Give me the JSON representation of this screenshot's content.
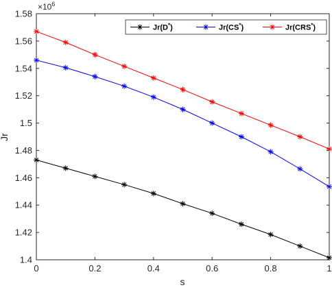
{
  "chart_data": {
    "type": "line",
    "title": "",
    "xlabel": "s",
    "ylabel": "Jr",
    "y_multiplier": "×10",
    "y_multiplier_exp": "6",
    "xlim": [
      0,
      1
    ],
    "ylim": [
      1.4,
      1.58
    ],
    "xticks": [
      0,
      0.2,
      0.4,
      0.6,
      0.8,
      1
    ],
    "xtick_labels": [
      "0",
      "0.2",
      "0.4",
      "0.6",
      "0.8",
      "1"
    ],
    "yticks": [
      1.4,
      1.42,
      1.44,
      1.46,
      1.48,
      1.5,
      1.52,
      1.54,
      1.56,
      1.58
    ],
    "ytick_labels": [
      "1.4",
      "1.42",
      "1.44",
      "1.46",
      "1.48",
      "1.5",
      "1.52",
      "1.54",
      "1.56",
      "1.58"
    ],
    "grid": false,
    "legend_position": "top-right",
    "x": [
      0,
      0.1,
      0.2,
      0.3,
      0.4,
      0.5,
      0.6,
      0.7,
      0.8,
      0.9,
      1
    ],
    "series": [
      {
        "name": "Jr(D",
        "sup": "*",
        "close": ")",
        "color": "#000000",
        "marker": "asterisk",
        "values": [
          1.473,
          1.467,
          1.461,
          1.455,
          1.4485,
          1.441,
          1.434,
          1.426,
          1.4185,
          1.41,
          1.4015
        ]
      },
      {
        "name": "Jr(CS",
        "sup": "*",
        "close": ")",
        "color": "#0000ff",
        "marker": "asterisk",
        "values": [
          1.546,
          1.5405,
          1.534,
          1.527,
          1.519,
          1.51,
          1.5,
          1.49,
          1.479,
          1.4665,
          1.4535
        ]
      },
      {
        "name": "Jr(CRS",
        "sup": "*",
        "close": ")",
        "color": "#ff0000",
        "marker": "asterisk",
        "values": [
          1.567,
          1.559,
          1.55,
          1.5415,
          1.533,
          1.5245,
          1.5155,
          1.507,
          1.4985,
          1.49,
          1.481
        ]
      }
    ]
  }
}
